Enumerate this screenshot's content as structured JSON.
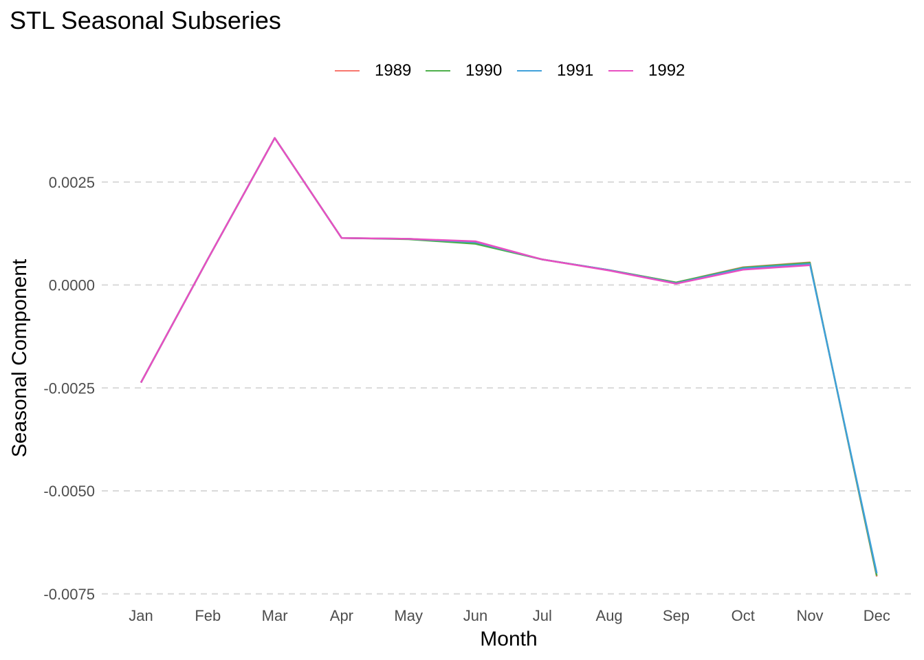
{
  "chart_data": {
    "type": "line",
    "title": "STL Seasonal Subseries",
    "xlabel": "Month",
    "ylabel": "Seasonal Component",
    "categories": [
      "Jan",
      "Feb",
      "Mar",
      "Apr",
      "May",
      "Jun",
      "Jul",
      "Aug",
      "Sep",
      "Oct",
      "Nov",
      "Dec"
    ],
    "ylim": [
      -0.0078,
      0.0044
    ],
    "yticks": [
      {
        "value": 0.0025,
        "label": "0.0025"
      },
      {
        "value": 0.0,
        "label": "0.0000"
      },
      {
        "value": -0.0025,
        "label": "-0.0025"
      },
      {
        "value": -0.005,
        "label": "-0.0050"
      },
      {
        "value": -0.0075,
        "label": "-0.0075"
      }
    ],
    "grid": "horizontal dashed",
    "legend_position": "top-center",
    "series": [
      {
        "name": "1989",
        "color": "#F8766D",
        "values": [
          -0.00237,
          0.00063,
          0.00357,
          0.00114,
          0.00112,
          0.00102,
          0.00062,
          0.00036,
          6e-05,
          0.00043,
          0.00055,
          -0.00708
        ]
      },
      {
        "name": "1990",
        "color": "#4DAF4A",
        "values": [
          -0.00237,
          0.00063,
          0.00357,
          0.00114,
          0.00111,
          0.001,
          0.00062,
          0.00036,
          6e-05,
          0.00042,
          0.00054,
          -0.00706
        ]
      },
      {
        "name": "1991",
        "color": "#3FA0DA",
        "values": [
          -0.00237,
          0.00063,
          0.00357,
          0.00114,
          0.00112,
          0.00104,
          0.00062,
          0.00036,
          4e-05,
          0.0004,
          0.00051,
          -0.007
        ]
      },
      {
        "name": "1992",
        "color": "#E84FC1",
        "values": [
          -0.00237,
          0.00063,
          0.00357,
          0.00114,
          0.00112,
          0.00106,
          0.00062,
          0.00035,
          3e-05,
          0.00037,
          0.00048,
          null
        ]
      }
    ]
  }
}
